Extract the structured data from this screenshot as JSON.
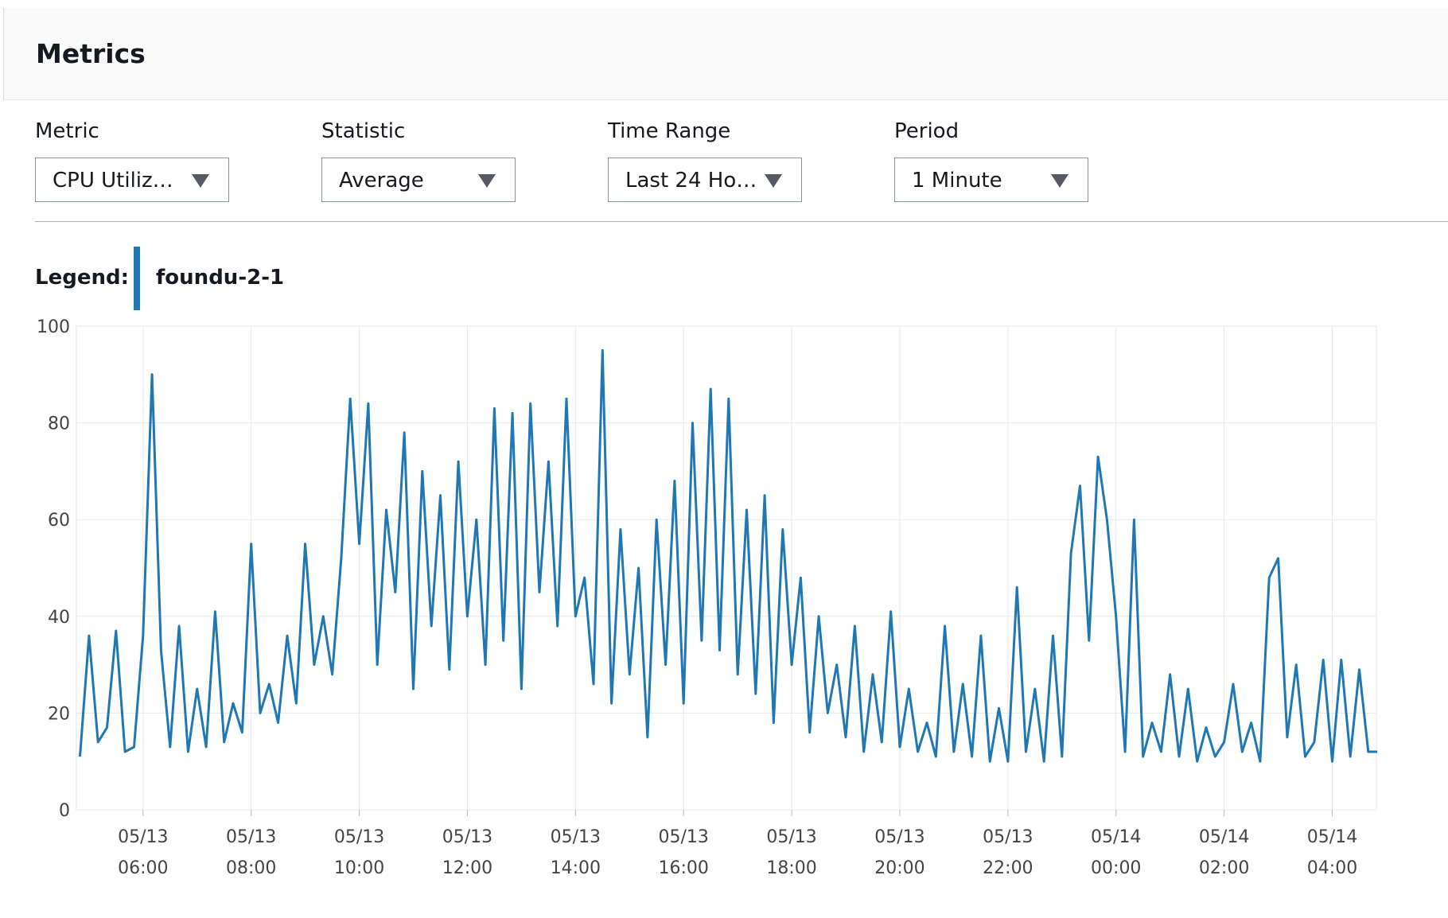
{
  "header": {
    "title": "Metrics"
  },
  "controls": [
    {
      "label": "Metric",
      "value": "CPU Utiliz…"
    },
    {
      "label": "Statistic",
      "value": "Average"
    },
    {
      "label": "Time Range",
      "value": "Last 24 Ho…"
    },
    {
      "label": "Period",
      "value": "1 Minute"
    }
  ],
  "legend_label": "Legend:",
  "chart_data": {
    "type": "line",
    "series": [
      {
        "name": "foundu-2-1",
        "color": "#1f77b4",
        "values": [
          11,
          36,
          14,
          17,
          37,
          12,
          13,
          36,
          90,
          33,
          13,
          38,
          12,
          25,
          13,
          41,
          14,
          22,
          16,
          55,
          20,
          26,
          18,
          36,
          22,
          55,
          30,
          40,
          28,
          52,
          85,
          55,
          84,
          30,
          62,
          45,
          78,
          25,
          70,
          38,
          65,
          29,
          72,
          40,
          60,
          30,
          83,
          35,
          82,
          25,
          84,
          45,
          72,
          38,
          85,
          40,
          48,
          26,
          95,
          22,
          58,
          28,
          50,
          15,
          60,
          30,
          68,
          22,
          80,
          35,
          87,
          33,
          85,
          28,
          62,
          24,
          65,
          18,
          58,
          30,
          48,
          16,
          40,
          20,
          30,
          15,
          38,
          12,
          28,
          14,
          41,
          13,
          25,
          12,
          18,
          11,
          38,
          12,
          26,
          11,
          36,
          10,
          21,
          10,
          46,
          12,
          25,
          10,
          36,
          11,
          53,
          67,
          35,
          73,
          60,
          40,
          12,
          60,
          11,
          18,
          12,
          28,
          11,
          25,
          10,
          17,
          11,
          14,
          26,
          12,
          18,
          10,
          48,
          52,
          15,
          30,
          11,
          14,
          31,
          10,
          31,
          11,
          29,
          12,
          12
        ]
      }
    ],
    "x": [
      "05/13 04:50",
      "05/13 05:00",
      "05/13 05:10",
      "05/13 05:20",
      "05/13 05:30",
      "05/13 05:40",
      "05/13 05:50",
      "05/13 06:00",
      "05/13 06:10",
      "05/13 06:20",
      "05/13 06:30",
      "05/13 06:40",
      "05/13 06:50",
      "05/13 07:00",
      "05/13 07:10",
      "05/13 07:20",
      "05/13 07:30",
      "05/13 07:40",
      "05/13 07:50",
      "05/13 08:00",
      "05/13 08:10",
      "05/13 08:20",
      "05/13 08:30",
      "05/13 08:40",
      "05/13 08:50",
      "05/13 09:00",
      "05/13 09:10",
      "05/13 09:20",
      "05/13 09:30",
      "05/13 09:40",
      "05/13 09:50",
      "05/13 10:00",
      "05/13 10:10",
      "05/13 10:20",
      "05/13 10:30",
      "05/13 10:40",
      "05/13 10:50",
      "05/13 11:00",
      "05/13 11:10",
      "05/13 11:20",
      "05/13 11:30",
      "05/13 11:40",
      "05/13 11:50",
      "05/13 12:00",
      "05/13 12:10",
      "05/13 12:20",
      "05/13 12:30",
      "05/13 12:40",
      "05/13 12:50",
      "05/13 13:00",
      "05/13 13:10",
      "05/13 13:20",
      "05/13 13:30",
      "05/13 13:40",
      "05/13 13:50",
      "05/13 14:00",
      "05/13 14:10",
      "05/13 14:20",
      "05/13 14:30",
      "05/13 14:40",
      "05/13 14:50",
      "05/13 15:00",
      "05/13 15:10",
      "05/13 15:20",
      "05/13 15:30",
      "05/13 15:40",
      "05/13 15:50",
      "05/13 16:00",
      "05/13 16:10",
      "05/13 16:20",
      "05/13 16:30",
      "05/13 16:40",
      "05/13 16:50",
      "05/13 17:00",
      "05/13 17:10",
      "05/13 17:20",
      "05/13 17:30",
      "05/13 17:40",
      "05/13 17:50",
      "05/13 18:00",
      "05/13 18:10",
      "05/13 18:20",
      "05/13 18:30",
      "05/13 18:40",
      "05/13 18:50",
      "05/13 19:00",
      "05/13 19:10",
      "05/13 19:20",
      "05/13 19:30",
      "05/13 19:40",
      "05/13 19:50",
      "05/13 20:00",
      "05/13 20:10",
      "05/13 20:20",
      "05/13 20:30",
      "05/13 20:40",
      "05/13 20:50",
      "05/13 21:00",
      "05/13 21:10",
      "05/13 21:20",
      "05/13 21:30",
      "05/13 21:40",
      "05/13 21:50",
      "05/13 22:00",
      "05/13 22:10",
      "05/13 22:20",
      "05/13 22:30",
      "05/13 22:40",
      "05/13 22:50",
      "05/13 23:00",
      "05/13 23:10",
      "05/13 23:20",
      "05/13 23:30",
      "05/13 23:40",
      "05/13 23:50",
      "05/14 00:00",
      "05/14 00:10",
      "05/14 00:20",
      "05/14 00:30",
      "05/14 00:40",
      "05/14 00:50",
      "05/14 01:00",
      "05/14 01:10",
      "05/14 01:20",
      "05/14 01:30",
      "05/14 01:40",
      "05/14 01:50",
      "05/14 02:00",
      "05/14 02:10",
      "05/14 02:20",
      "05/14 02:30",
      "05/14 02:40",
      "05/14 02:50",
      "05/14 03:00",
      "05/14 03:10",
      "05/14 03:20",
      "05/14 03:30",
      "05/14 03:40",
      "05/14 03:50",
      "05/14 04:00",
      "05/14 04:10",
      "05/14 04:20",
      "05/14 04:30",
      "05/14 04:40",
      "05/14 04:50"
    ],
    "xlim": [
      "05/13 04:46",
      "05/14 04:49"
    ],
    "xticks": [
      {
        "value": "05/13 06:00",
        "label": [
          "05/13",
          "06:00"
        ]
      },
      {
        "value": "05/13 08:00",
        "label": [
          "05/13",
          "08:00"
        ]
      },
      {
        "value": "05/13 10:00",
        "label": [
          "05/13",
          "10:00"
        ]
      },
      {
        "value": "05/13 12:00",
        "label": [
          "05/13",
          "12:00"
        ]
      },
      {
        "value": "05/13 14:00",
        "label": [
          "05/13",
          "14:00"
        ]
      },
      {
        "value": "05/13 16:00",
        "label": [
          "05/13",
          "16:00"
        ]
      },
      {
        "value": "05/13 18:00",
        "label": [
          "05/13",
          "18:00"
        ]
      },
      {
        "value": "05/13 20:00",
        "label": [
          "05/13",
          "20:00"
        ]
      },
      {
        "value": "05/13 22:00",
        "label": [
          "05/13",
          "22:00"
        ]
      },
      {
        "value": "05/14 00:00",
        "label": [
          "05/14",
          "00:00"
        ]
      },
      {
        "value": "05/14 02:00",
        "label": [
          "05/14",
          "02:00"
        ]
      },
      {
        "value": "05/14 04:00",
        "label": [
          "05/14",
          "04:00"
        ]
      }
    ],
    "ylim": [
      0,
      100
    ],
    "yticks": [
      0,
      20,
      40,
      60,
      80,
      100
    ],
    "grid": true
  }
}
